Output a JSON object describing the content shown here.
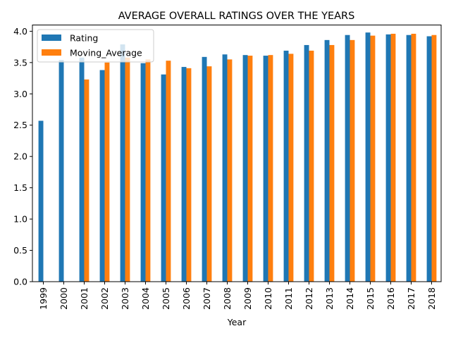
{
  "chart_data": {
    "type": "bar",
    "title": "AVERAGE OVERALL RATINGS OVER THE YEARS",
    "xlabel": "Year",
    "ylabel": "",
    "ylim": [
      0,
      4.1
    ],
    "yticks": [
      "0.0",
      "0.5",
      "1.0",
      "1.5",
      "2.0",
      "2.5",
      "3.0",
      "3.5",
      "4.0"
    ],
    "grid": false,
    "legend_position": "top-left",
    "categories": [
      "1999",
      "2000",
      "2001",
      "2002",
      "2003",
      "2004",
      "2005",
      "2006",
      "2007",
      "2008",
      "2009",
      "2010",
      "2011",
      "2012",
      "2013",
      "2014",
      "2015",
      "2016",
      "2017",
      "2018"
    ],
    "series": [
      {
        "name": "Rating",
        "color": "#1f77b4",
        "values": [
          2.57,
          3.54,
          3.58,
          3.38,
          3.79,
          3.49,
          3.31,
          3.43,
          3.59,
          3.63,
          3.62,
          3.61,
          3.69,
          3.78,
          3.86,
          3.94,
          3.98,
          3.95,
          3.94,
          3.92
        ]
      },
      {
        "name": "Moving_Average",
        "color": "#ff7f0e",
        "values": [
          null,
          null,
          3.23,
          3.5,
          3.58,
          3.55,
          3.53,
          3.41,
          3.44,
          3.55,
          3.61,
          3.62,
          3.64,
          3.69,
          3.78,
          3.86,
          3.93,
          3.96,
          3.96,
          3.94
        ]
      }
    ]
  }
}
